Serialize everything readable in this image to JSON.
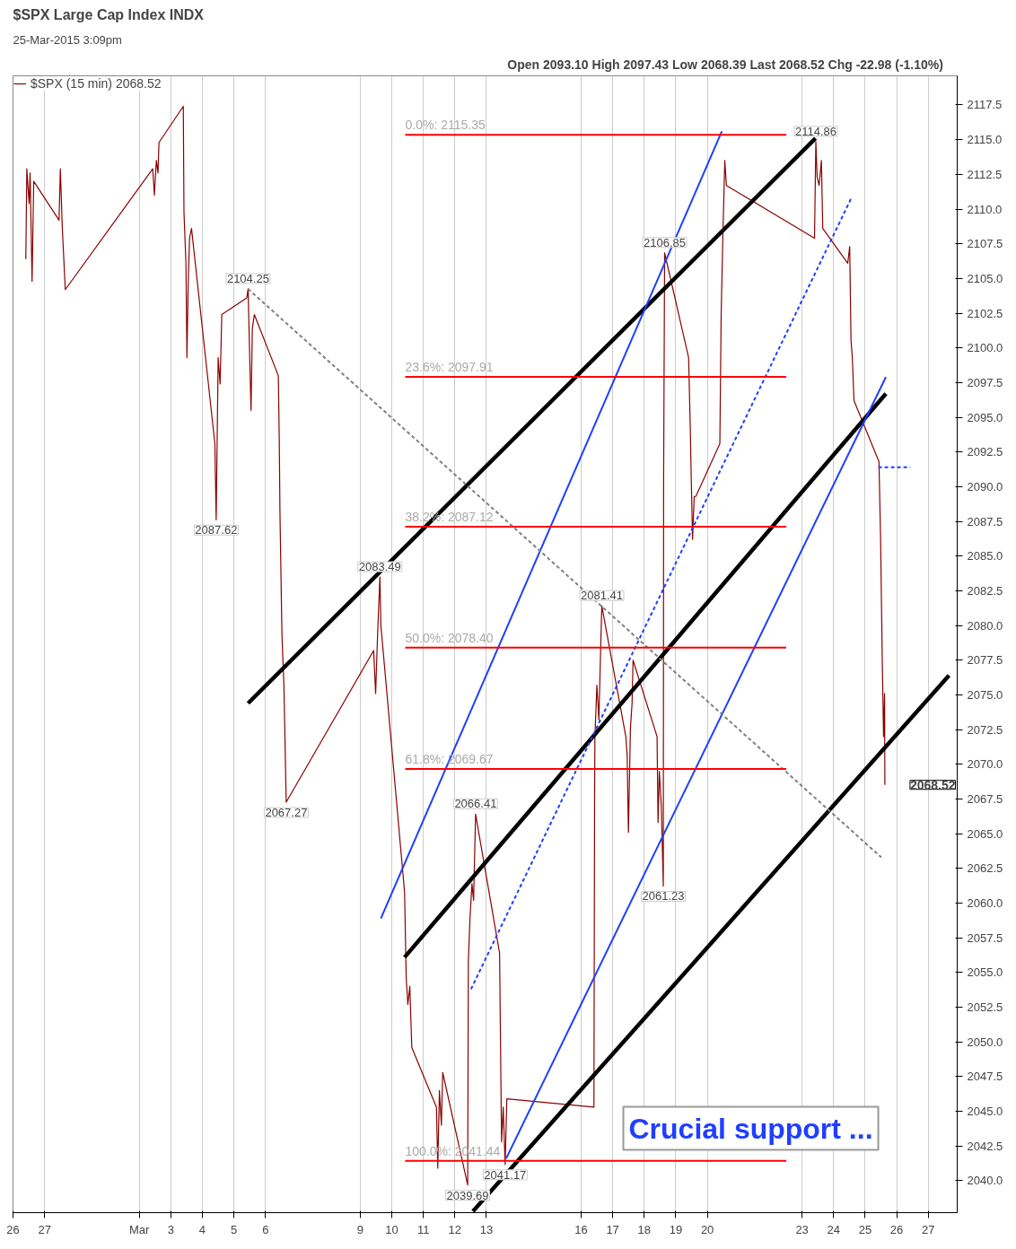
{
  "chart_data": {
    "type": "line",
    "title": "$SPX Large Cap Index INDX",
    "subtitle": "25-Mar-2015 3:09pm",
    "xlim": [
      "2015-02-26",
      "2015-03-27T22:00"
    ],
    "ylim": [
      2037.7,
      2119.6
    ],
    "xticks": [
      {
        "value": "2015-02-26",
        "label": "26"
      },
      {
        "value": "2015-02-27",
        "label": "27"
      },
      {
        "value": "2015-03-02",
        "label": "Mar"
      },
      {
        "value": "2015-03-03",
        "label": "3"
      },
      {
        "value": "2015-03-04",
        "label": "4"
      },
      {
        "value": "2015-03-05",
        "label": "5"
      },
      {
        "value": "2015-03-06",
        "label": "6"
      },
      {
        "value": "2015-03-09",
        "label": "9"
      },
      {
        "value": "2015-03-10",
        "label": "10"
      },
      {
        "value": "2015-03-11",
        "label": "11"
      },
      {
        "value": "2015-03-12",
        "label": "12"
      },
      {
        "value": "2015-03-13",
        "label": "13"
      },
      {
        "value": "2015-03-16",
        "label": "16"
      },
      {
        "value": "2015-03-17",
        "label": "17"
      },
      {
        "value": "2015-03-18",
        "label": "18"
      },
      {
        "value": "2015-03-19",
        "label": "19"
      },
      {
        "value": "2015-03-20",
        "label": "20"
      },
      {
        "value": "2015-03-23",
        "label": "23"
      },
      {
        "value": "2015-03-24",
        "label": "24"
      },
      {
        "value": "2015-03-25",
        "label": "25"
      },
      {
        "value": "2015-03-26",
        "label": "26"
      },
      {
        "value": "2015-03-27",
        "label": "27"
      }
    ],
    "yticks": [
      {
        "value": 2040,
        "label": "2040.0"
      },
      {
        "value": 2042.5,
        "label": "2042.5"
      },
      {
        "value": 2045,
        "label": "2045.0"
      },
      {
        "value": 2047.5,
        "label": "2047.5"
      },
      {
        "value": 2050,
        "label": "2050.0"
      },
      {
        "value": 2052.5,
        "label": "2052.5"
      },
      {
        "value": 2055,
        "label": "2055.0"
      },
      {
        "value": 2057.5,
        "label": "2057.5"
      },
      {
        "value": 2060,
        "label": "2060.0"
      },
      {
        "value": 2062.5,
        "label": "2062.5"
      },
      {
        "value": 2065,
        "label": "2065.0"
      },
      {
        "value": 2067.5,
        "label": "2067.5"
      },
      {
        "value": 2070,
        "label": "2070.0"
      },
      {
        "value": 2072.5,
        "label": "2072.5"
      },
      {
        "value": 2075,
        "label": "2075.0"
      },
      {
        "value": 2077.5,
        "label": "2077.5"
      },
      {
        "value": 2080,
        "label": "2080.0"
      },
      {
        "value": 2082.5,
        "label": "2082.5"
      },
      {
        "value": 2085,
        "label": "2085.0"
      },
      {
        "value": 2087.5,
        "label": "2087.5"
      },
      {
        "value": 2090,
        "label": "2090.0"
      },
      {
        "value": 2092.5,
        "label": "2092.5"
      },
      {
        "value": 2095,
        "label": "2095.0"
      },
      {
        "value": 2097.5,
        "label": "2097.5"
      },
      {
        "value": 2100,
        "label": "2100.0"
      },
      {
        "value": 2102.5,
        "label": "2102.5"
      },
      {
        "value": 2105,
        "label": "2105.0"
      },
      {
        "value": 2107.5,
        "label": "2107.5"
      },
      {
        "value": 2110,
        "label": "2110.0"
      },
      {
        "value": 2112.5,
        "label": "2112.5"
      },
      {
        "value": 2115,
        "label": "2115.0"
      },
      {
        "value": 2117.5,
        "label": "2117.5"
      }
    ],
    "grid": "x",
    "legend": "top left",
    "marker": "none",
    "series": [
      {
        "name": "$SPX (15 min) 2068.52",
        "color": "#8b0000",
        "line_style": "solid",
        "x": [
          "2015-02-26T09:45",
          "2015-02-26T10:30",
          "2015-02-26T12:15",
          "2015-02-26T13:00",
          "2015-02-26T14:30",
          "2015-02-26T15:45",
          "2015-02-27T11:00",
          "2015-02-27T12:00",
          "2015-02-27T13:30",
          "2015-02-27T15:45",
          "2015-03-02T10:15",
          "2015-03-02T11:30",
          "2015-03-02T13:00",
          "2015-03-02T14:15",
          "2015-03-02T15:00",
          "2015-03-03T09:30",
          "2015-03-03T10:00",
          "2015-03-03T11:30",
          "2015-03-03T12:15",
          "2015-03-03T13:15",
          "2015-03-03T14:15",
          "2015-03-03T15:45",
          "2015-03-04T09:30",
          "2015-03-04T10:30",
          "2015-03-04T12:00",
          "2015-03-04T13:30",
          "2015-03-04T14:45",
          "2015-03-05T09:45",
          "2015-03-05T10:45",
          "2015-03-05T12:00",
          "2015-03-05T13:00",
          "2015-03-05T14:00",
          "2015-03-05T15:30",
          "2015-03-06T09:45",
          "2015-03-06T10:30",
          "2015-03-06T11:00",
          "2015-03-06T12:30",
          "2015-03-06T14:00",
          "2015-03-06T15:45",
          "2015-03-09T10:15",
          "2015-03-09T11:45",
          "2015-03-09T13:15",
          "2015-03-09T15:00",
          "2015-03-09T15:45",
          "2015-03-10T09:45",
          "2015-03-10T11:00",
          "2015-03-10T12:15",
          "2015-03-10T13:45",
          "2015-03-10T15:15",
          "2015-03-11T10:00",
          "2015-03-11T11:00",
          "2015-03-11T12:15",
          "2015-03-11T13:45",
          "2015-03-11T14:45",
          "2015-03-12T09:45",
          "2015-03-12T10:15",
          "2015-03-12T11:30",
          "2015-03-12T13:00",
          "2015-03-12T14:15",
          "2015-03-12T15:45",
          "2015-03-13T10:00",
          "2015-03-13T11:30",
          "2015-03-13T12:45",
          "2015-03-13T14:15",
          "2015-03-13T15:30",
          "2015-03-16T09:45",
          "2015-03-16T10:15",
          "2015-03-16T10:30",
          "2015-03-16T12:00",
          "2015-03-16T13:30",
          "2015-03-16T15:00",
          "2015-03-16T15:45",
          "2015-03-17T10:00",
          "2015-03-17T11:00",
          "2015-03-17T12:00",
          "2015-03-17T13:30",
          "2015-03-17T14:45",
          "2015-03-17T15:30",
          "2015-03-18T09:45",
          "2015-03-18T10:30",
          "2015-03-18T11:30",
          "2015-03-18T13:00",
          "2015-03-18T14:30",
          "2015-03-18T14:45",
          "2015-03-18T15:30",
          "2015-03-19T09:45",
          "2015-03-19T11:00",
          "2015-03-19T11:45",
          "2015-03-19T12:45",
          "2015-03-19T14:00",
          "2015-03-19T15:15",
          "2015-03-20T09:30",
          "2015-03-20T10:30",
          "2015-03-20T11:45",
          "2015-03-20T13:15",
          "2015-03-20T14:30",
          "2015-03-23T09:30",
          "2015-03-23T10:30",
          "2015-03-23T11:30",
          "2015-03-23T13:00",
          "2015-03-23T14:45",
          "2015-03-23T15:45",
          "2015-03-24T10:45",
          "2015-03-24T12:15",
          "2015-03-24T13:15",
          "2015-03-24T14:15",
          "2015-03-24T15:30",
          "2015-03-25T10:30",
          "2015-03-25T11:45",
          "2015-03-25T13:00",
          "2015-03-25T14:00",
          "2015-03-25T14:45",
          "2015-03-25T15:00"
        ],
        "values": [
          2106.4,
          2112.9,
          2110.4,
          2112.6,
          2104.8,
          2112.0,
          2109.2,
          2112.9,
          2108.6,
          2104.2,
          2112.9,
          2111.0,
          2113.5,
          2112.6,
          2114.8,
          2117.4,
          2109.8,
          2106.1,
          2099.3,
          2104.8,
          2107.9,
          2108.6,
          2093.1,
          2087.62,
          2099.3,
          2097.4,
          2102.4,
          2103.6,
          2104.25,
          2099.3,
          2095.5,
          2101.4,
          2102.4,
          2098.0,
          2093.1,
          2088.1,
          2079.4,
          2075.7,
          2067.27,
          2078.2,
          2075.1,
          2079.4,
          2083.49,
          2080.0,
          2060.8,
          2054.6,
          2052.7,
          2054.0,
          2049.6,
          2045.3,
          2040.9,
          2046.5,
          2044.0,
          2047.8,
          2039.69,
          2055.8,
          2058.9,
          2061.4,
          2060.2,
          2066.41,
          2056.4,
          2042.8,
          2045.3,
          2041.17,
          2045.9,
          2045.3,
          2067.6,
          2072.0,
          2075.7,
          2073.2,
          2078.8,
          2081.41,
          2072.0,
          2070.7,
          2065.1,
          2072.6,
          2074.4,
          2077.5,
          2072.0,
          2065.8,
          2069.5,
          2067.0,
          2061.23,
          2090.6,
          2106.85,
          2099.3,
          2094.3,
          2090.6,
          2086.2,
          2089.3,
          2089.3,
          2093.1,
          2102.4,
          2107.9,
          2113.5,
          2111.7,
          2107.9,
          2114.86,
          2112.3,
          2111.7,
          2113.5,
          2108.6,
          2106.1,
          2107.3,
          2100.5,
          2099.3,
          2096.2,
          2091.8,
          2086.2,
          2077.5,
          2072.0,
          2075.1,
          2068.52
        ]
      },
      {
        "color": "#000000",
        "line_style": "solid",
        "x": [
          "2015-03-05T10:45",
          "2015-03-23T10:15"
        ],
        "values": [
          2074.4,
          2115.1
        ]
      },
      {
        "color": "#000000",
        "line_style": "solid",
        "x": [
          "2015-03-10T09:45",
          "2015-03-25T15:45"
        ],
        "values": [
          2056.1,
          2096.7
        ]
      },
      {
        "color": "#000000",
        "line_style": "solid",
        "x": [
          "2015-03-12T13:45",
          "2015-03-27T15:45"
        ],
        "values": [
          2037.8,
          2076.4
        ]
      },
      {
        "color": "#1f3fff",
        "line_style": "solid",
        "x": [
          "2015-03-09T15:45",
          "2015-03-20T11:00"
        ],
        "values": [
          2058.9,
          2115.6
        ]
      },
      {
        "color": "#1f3fff",
        "line_style": "solid",
        "x": [
          "2015-03-13T15:00",
          "2015-03-25T15:45"
        ],
        "values": [
          2041.6,
          2097.9
        ]
      },
      {
        "color": "#1f3fff",
        "line_style": "dashed",
        "x": [
          "2015-03-12T12:15",
          "2015-03-24T14:00"
        ],
        "values": [
          2053.8,
          2110.9
        ]
      },
      {
        "color": "#1f3fff",
        "line_style": "dashed",
        "x": [
          "2015-03-25T10:00",
          "2015-03-26T10:15"
        ],
        "values": [
          2091.4,
          2091.4
        ]
      },
      {
        "color": "#808080",
        "line_style": "dashed",
        "x": [
          "2015-03-05T10:45",
          "2015-03-25T12:15"
        ],
        "values": [
          2104.25,
          2063.3
        ]
      },
      {
        "color": "#ff0000",
        "line_style": "solid",
        "x": [
          "2015-03-10T10:15",
          "2015-03-22T12:00"
        ],
        "values": [
          2115.35,
          2115.35
        ]
      },
      {
        "color": "#ff0000",
        "line_style": "solid",
        "x": [
          "2015-03-10T10:15",
          "2015-03-22T12:00"
        ],
        "values": [
          2097.91,
          2097.91
        ]
      },
      {
        "color": "#ff0000",
        "line_style": "solid",
        "x": [
          "2015-03-10T10:15",
          "2015-03-22T12:00"
        ],
        "values": [
          2087.12,
          2087.12
        ]
      },
      {
        "color": "#ff0000",
        "line_style": "solid",
        "x": [
          "2015-03-10T10:15",
          "2015-03-22T12:00"
        ],
        "values": [
          2078.4,
          2078.4
        ]
      },
      {
        "color": "#ff0000",
        "line_style": "solid",
        "x": [
          "2015-03-10T10:15",
          "2015-03-22T12:00"
        ],
        "values": [
          2069.67,
          2069.67
        ]
      },
      {
        "color": "#ff0000",
        "line_style": "solid",
        "x": [
          "2015-03-10T10:15",
          "2015-03-22T12:00"
        ],
        "values": [
          2041.44,
          2041.44
        ]
      }
    ],
    "annotations": [
      "Open 2093.10  High 2097.43  Low 2068.39  Last 2068.52  Chg -22.98 (-1.10%)",
      "Crucial support ...",
      {
        "text": "0.0%: 2115.35",
        "x": "2015-03-10T10:15",
        "y": 2115.35
      },
      {
        "text": "23.6%: 2097.91",
        "x": "2015-03-10T10:15",
        "y": 2097.91
      },
      {
        "text": "38.2%: 2087.12",
        "x": "2015-03-10T10:15",
        "y": 2087.12
      },
      {
        "text": "50.0%: 2078.40",
        "x": "2015-03-10T10:15",
        "y": 2078.4
      },
      {
        "text": "61.8%: 2069.67",
        "x": "2015-03-10T10:15",
        "y": 2069.67
      },
      {
        "text": "100.0%: 2041.44",
        "x": "2015-03-10T10:15",
        "y": 2041.44
      },
      {
        "text": "2104.25",
        "x": "2015-03-05T10:45",
        "y": 2104.25
      },
      {
        "text": "2087.62",
        "x": "2015-03-04T10:30",
        "y": 2087.62
      },
      {
        "text": "2083.49",
        "x": "2015-03-09T15:00",
        "y": 2083.49
      },
      {
        "text": "2067.27",
        "x": "2015-03-06T15:45",
        "y": 2067.27
      },
      {
        "text": "2039.69",
        "x": "2015-03-12T09:45",
        "y": 2039.69
      },
      {
        "text": "2066.41",
        "x": "2015-03-12T15:45",
        "y": 2066.41
      },
      {
        "text": "2041.17",
        "x": "2015-03-13T14:15",
        "y": 2041.17
      },
      {
        "text": "2081.41",
        "x": "2015-03-16T15:45",
        "y": 2081.41
      },
      {
        "text": "2061.23",
        "x": "2015-03-18T14:30",
        "y": 2061.23
      },
      {
        "text": "2106.85",
        "x": "2015-03-18T15:30",
        "y": 2106.85
      },
      {
        "text": "2114.86",
        "x": "2015-03-23T10:30",
        "y": 2114.86
      },
      "2068.52"
    ]
  }
}
